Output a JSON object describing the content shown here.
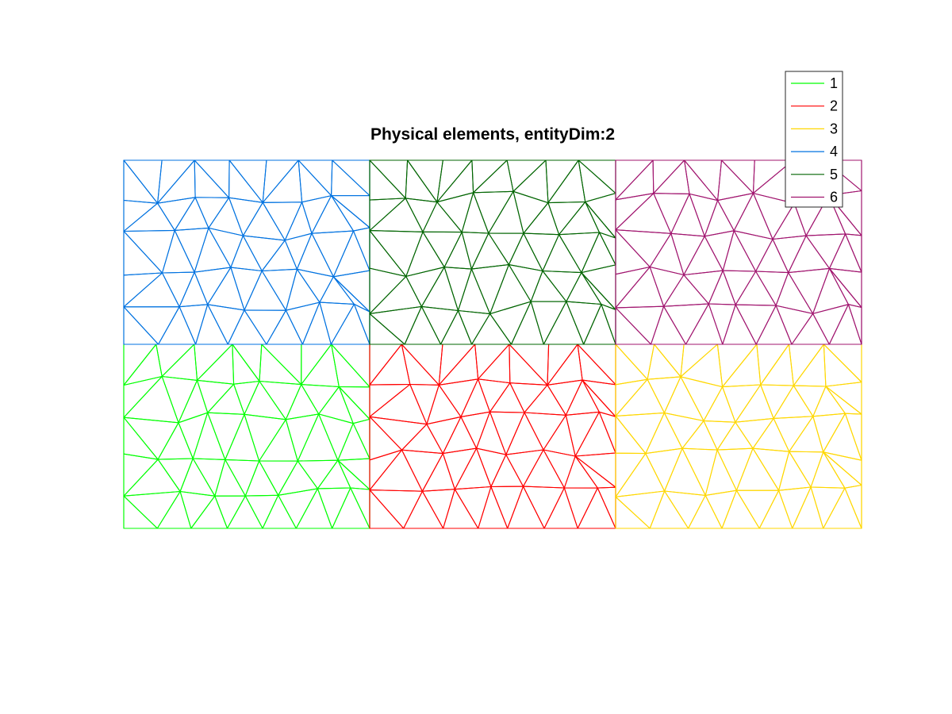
{
  "chart_data": {
    "type": "mesh",
    "title": "Physical elements, entityDim:2",
    "xlim": [
      0,
      3
    ],
    "ylim": [
      0,
      1.5
    ],
    "grid": false,
    "legend_position": "top-right",
    "series": [
      {
        "name": "1",
        "color": "#00ff00",
        "domain": [
          0,
          1,
          0,
          0.75
        ]
      },
      {
        "name": "2",
        "color": "#ff0000",
        "domain": [
          1,
          2,
          0,
          0.75
        ]
      },
      {
        "name": "3",
        "color": "#ffd700",
        "domain": [
          2,
          3,
          0,
          0.75
        ]
      },
      {
        "name": "4",
        "color": "#0072e0",
        "domain": [
          0,
          1,
          0.75,
          1.5
        ]
      },
      {
        "name": "5",
        "color": "#006400",
        "domain": [
          1,
          2,
          0.75,
          1.5
        ]
      },
      {
        "name": "6",
        "color": "#a0146e",
        "domain": [
          2,
          3,
          0.75,
          1.5
        ]
      }
    ]
  }
}
